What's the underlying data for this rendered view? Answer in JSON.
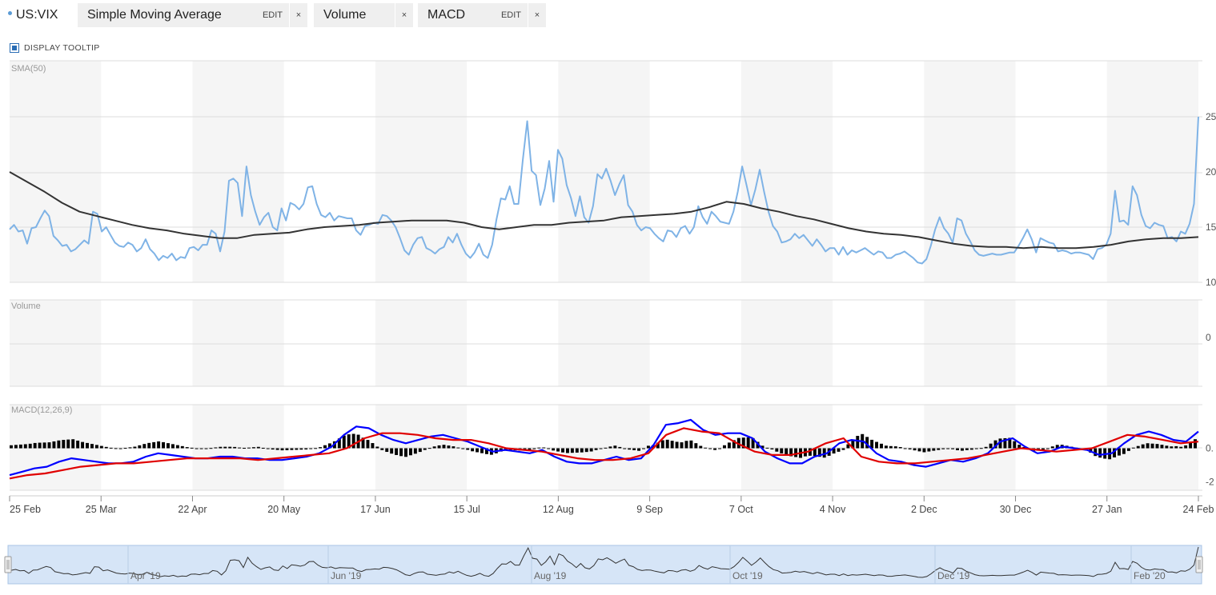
{
  "toolbar": {
    "symbol": "US:VIX",
    "indicators": [
      {
        "name": "Simple Moving Average",
        "edit": "EDIT",
        "close": "×"
      },
      {
        "name": "Volume",
        "edit": "",
        "close": "×"
      },
      {
        "name": "MACD",
        "edit": "EDIT",
        "close": "×"
      }
    ],
    "display_tooltip": "DISPLAY TOOLTIP"
  },
  "chart_data": [
    {
      "type": "line",
      "panel": "price",
      "label": "SMA(50)",
      "y_ticks": [
        "25",
        "20",
        "15",
        "10"
      ],
      "ylim": [
        10,
        25
      ],
      "series": [
        {
          "name": "US:VIX",
          "color": "#7fb3e6",
          "values": [
            14.8,
            15.2,
            14.6,
            14.7,
            13.5,
            14.9,
            15.0,
            15.8,
            16.5,
            16.0,
            14.2,
            13.8,
            13.3,
            13.4,
            12.8,
            13.0,
            13.4,
            13.8,
            13.5,
            16.4,
            16.2,
            14.6,
            15.0,
            14.3,
            13.6,
            13.3,
            13.2,
            13.6,
            13.4,
            12.8,
            13.1,
            13.9,
            13.0,
            12.6,
            12.0,
            12.4,
            12.2,
            12.6,
            12.0,
            12.3,
            12.2,
            13.1,
            13.2,
            12.9,
            13.4,
            13.4,
            14.7,
            14.4,
            12.8,
            14.6,
            19.2,
            19.4,
            19.0,
            16.0,
            20.5,
            17.9,
            16.4,
            15.2,
            15.9,
            16.3,
            15.0,
            14.7,
            16.7,
            15.6,
            17.2,
            17.0,
            16.6,
            17.1,
            18.6,
            18.7,
            17.1,
            16.1,
            15.9,
            16.3,
            15.6,
            16.0,
            15.9,
            15.8,
            15.8,
            14.7,
            14.3,
            15.1,
            15.2,
            15.4,
            15.3,
            16.1,
            16.0,
            15.6,
            15.0,
            14.0,
            12.9,
            12.5,
            13.4,
            14.0,
            14.1,
            13.1,
            12.9,
            12.6,
            13.0,
            13.2,
            14.1,
            13.6,
            14.4,
            13.4,
            12.6,
            12.2,
            12.7,
            13.5,
            12.5,
            12.2,
            13.4,
            15.7,
            17.6,
            17.5,
            18.7,
            17.1,
            17.1,
            21.1,
            24.6,
            20.1,
            19.7,
            17.0,
            18.5,
            21.0,
            17.3,
            22.0,
            21.2,
            18.8,
            17.6,
            16.0,
            17.8,
            15.9,
            15.4,
            16.9,
            19.8,
            19.4,
            20.3,
            19.2,
            17.9,
            18.9,
            19.7,
            17.0,
            16.4,
            15.2,
            14.7,
            15.0,
            14.9,
            14.4,
            14.0,
            13.7,
            14.7,
            14.6,
            14.1,
            14.9,
            15.1,
            14.4,
            15.0,
            16.9,
            15.9,
            15.3,
            16.4,
            16.0,
            15.5,
            15.4,
            15.3,
            16.4,
            18.2,
            20.5,
            18.8,
            17.0,
            18.4,
            20.2,
            18.2,
            16.4,
            15.1,
            14.6,
            13.6,
            13.7,
            13.9,
            14.4,
            14.0,
            14.3,
            13.8,
            13.3,
            13.9,
            13.4,
            12.8,
            13.1,
            13.1,
            12.5,
            13.2,
            12.5,
            12.9,
            12.7,
            12.9,
            13.1,
            12.8,
            12.5,
            12.8,
            12.7,
            12.2,
            12.2,
            12.5,
            12.6,
            12.8,
            12.5,
            12.2,
            11.8,
            11.7,
            12.1,
            13.3,
            14.8,
            15.9,
            14.9,
            14.4,
            13.6,
            15.8,
            15.6,
            14.4,
            13.7,
            12.9,
            12.5,
            12.4,
            12.5,
            12.6,
            12.5,
            12.5,
            12.6,
            12.7,
            12.7,
            13.3,
            14.0,
            14.8,
            13.9,
            12.7,
            14.0,
            13.8,
            13.6,
            13.5,
            12.8,
            12.9,
            12.8,
            12.6,
            12.7,
            12.7,
            12.6,
            12.5,
            12.1,
            13.0,
            13.1,
            13.4,
            14.4,
            18.3,
            15.5,
            15.6,
            15.2,
            18.7,
            17.9,
            16.1,
            15.1,
            14.9,
            15.4,
            15.2,
            15.1,
            14.0,
            14.1,
            13.7,
            14.6,
            14.4,
            15.3,
            17.1,
            25.0
          ]
        },
        {
          "name": "SMA(50)",
          "color": "#333333",
          "values": [
            20.0,
            19.1,
            18.2,
            17.2,
            16.4,
            16.0,
            15.6,
            15.2,
            14.9,
            14.7,
            14.4,
            14.2,
            14.0,
            14.0,
            14.3,
            14.4,
            14.5,
            14.8,
            15.0,
            15.1,
            15.2,
            15.4,
            15.5,
            15.6,
            15.6,
            15.6,
            15.4,
            15.0,
            14.8,
            15.0,
            15.2,
            15.2,
            15.4,
            15.5,
            15.6,
            15.9,
            16.0,
            16.1,
            16.2,
            16.4,
            16.8,
            17.3,
            17.1,
            16.7,
            16.4,
            16.0,
            15.7,
            15.3,
            14.9,
            14.6,
            14.4,
            14.3,
            14.1,
            13.8,
            13.5,
            13.3,
            13.2,
            13.2,
            13.1,
            13.2,
            13.1,
            13.1,
            13.2,
            13.4,
            13.7,
            13.9,
            14.0,
            14.0,
            14.1
          ]
        },
        {
          "name": "SMA(50)",
          "color": "#333333",
          "values": []
        }
      ]
    },
    {
      "type": "bar",
      "panel": "volume",
      "label": "Volume",
      "y_ticks": [
        "0"
      ],
      "values": []
    },
    {
      "type": "line",
      "panel": "macd",
      "label": "MACD(12,26,9)",
      "y_ticks": [
        "0.",
        "-2"
      ],
      "ylim": [
        -2.5,
        2.6
      ],
      "series": [
        {
          "name": "MACD",
          "color": "#0000ff",
          "values": [
            -1.6,
            -1.4,
            -1.2,
            -1.1,
            -0.8,
            -0.6,
            -0.7,
            -0.8,
            -0.9,
            -0.9,
            -0.8,
            -0.5,
            -0.3,
            -0.4,
            -0.5,
            -0.6,
            -0.6,
            -0.5,
            -0.5,
            -0.6,
            -0.6,
            -0.7,
            -0.7,
            -0.6,
            -0.5,
            -0.3,
            0.1,
            0.8,
            1.3,
            1.2,
            0.8,
            0.5,
            0.3,
            0.5,
            0.7,
            0.8,
            0.6,
            0.4,
            0.1,
            -0.2,
            -0.1,
            -0.2,
            -0.3,
            -0.1,
            -0.5,
            -0.8,
            -0.9,
            -0.9,
            -0.7,
            -0.5,
            -0.7,
            -0.6,
            0.2,
            1.4,
            1.5,
            1.7,
            1.1,
            0.8,
            0.9,
            0.9,
            0.6,
            -0.2,
            -0.6,
            -0.9,
            -0.9,
            -0.5,
            -0.3,
            0.3,
            0.5,
            0.4,
            -0.3,
            -0.7,
            -0.8,
            -1.0,
            -1.1,
            -0.9,
            -0.7,
            -0.8,
            -0.6,
            -0.3,
            0.4,
            0.6,
            0.1,
            -0.3,
            -0.2,
            0.1,
            0.0,
            -0.1,
            -0.4,
            -0.3,
            0.3,
            0.8,
            1.0,
            0.8,
            0.5,
            0.4,
            1.0
          ]
        },
        {
          "name": "Signal",
          "color": "#e00000",
          "values": [
            -1.8,
            -1.6,
            -1.5,
            -1.3,
            -1.1,
            -1.0,
            -0.9,
            -0.9,
            -0.8,
            -0.7,
            -0.6,
            -0.6,
            -0.6,
            -0.6,
            -0.7,
            -0.6,
            -0.5,
            -0.4,
            -0.3,
            0.0,
            0.6,
            0.9,
            0.9,
            0.8,
            0.6,
            0.5,
            0.5,
            0.3,
            0.0,
            -0.1,
            -0.2,
            -0.4,
            -0.6,
            -0.7,
            -0.7,
            -0.6,
            -0.3,
            0.8,
            1.2,
            1.0,
            0.9,
            0.3,
            -0.2,
            -0.4,
            -0.4,
            -0.2,
            0.3,
            0.6,
            -0.5,
            -0.8,
            -0.9,
            -0.9,
            -0.8,
            -0.7,
            -0.6,
            -0.4,
            -0.2,
            0.0,
            -0.1,
            -0.2,
            -0.1,
            0.0,
            0.4,
            0.8,
            0.7,
            0.5,
            0.3,
            0.4
          ]
        },
        {
          "name": "Histogram",
          "color": "#000000",
          "values": []
        }
      ]
    }
  ],
  "x_axis": {
    "labels": [
      "25 Feb",
      "25 Mar",
      "22 Apr",
      "20 May",
      "17 Jun",
      "15 Jul",
      "12 Aug",
      "9 Sep",
      "7 Oct",
      "4 Nov",
      "2 Dec",
      "30 Dec",
      "27 Jan",
      "24 Feb"
    ]
  },
  "navigator": {
    "labels": [
      "Apr '19",
      "Jun '19",
      "Aug '19",
      "Oct '19",
      "Dec '19",
      "Feb '20"
    ]
  },
  "colors": {
    "vix_line": "#7fb3e6",
    "sma_line": "#333333",
    "macd_line": "#0000ff",
    "signal_line": "#e00000",
    "histogram": "#000000",
    "band": "#f5f5f5",
    "navigator_fill": "#d6e5f7",
    "navigator_border": "#a9c4e4"
  }
}
